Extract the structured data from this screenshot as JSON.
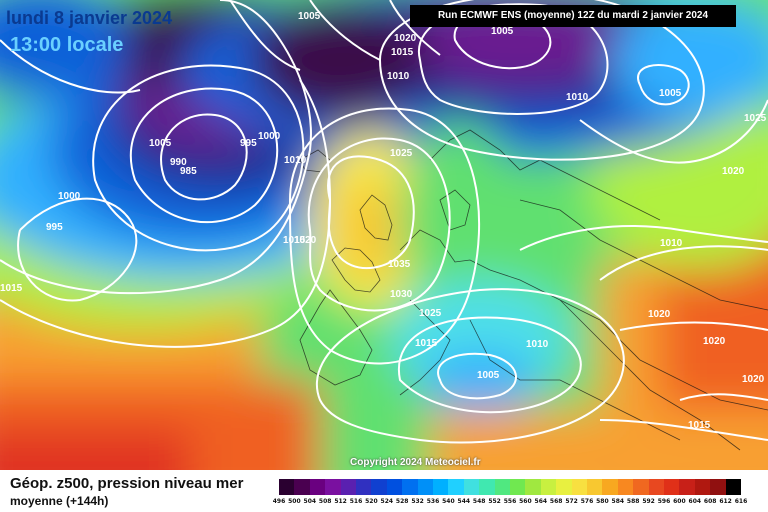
{
  "map": {
    "date_text": "lundi 8 janvier 2024",
    "hour_text": "13:00 locale",
    "run_text": "Run ECMWF ENS (moyenne) 12Z du mardi 2 janvier 2024",
    "copyright": "Copyright 2024 Meteociel.fr",
    "isobar_labels": [
      "1005",
      "1020",
      "1015",
      "1010",
      "1005",
      "1010",
      "1005",
      "1025",
      "1005",
      "1000",
      "995",
      "990",
      "985",
      "1000",
      "995",
      "1025",
      "1020",
      "1010",
      "1015",
      "1035",
      "1030",
      "1025",
      "1015",
      "1010",
      "1005",
      "1010",
      "1020",
      "1020",
      "1020",
      "1015",
      "1015",
      "1020"
    ]
  },
  "legend": {
    "title": "Géop. z500, pression niveau mer",
    "subtitle": "moyenne   (+144h)",
    "scale_values": [
      "496",
      "500",
      "504",
      "508",
      "512",
      "516",
      "520",
      "524",
      "528",
      "532",
      "536",
      "540",
      "544",
      "548",
      "552",
      "556",
      "560",
      "564",
      "568",
      "572",
      "576",
      "580",
      "584",
      "588",
      "592",
      "596",
      "600",
      "604",
      "608",
      "612",
      "616"
    ],
    "scale_colors": [
      "#2a0030",
      "#4a0050",
      "#6a0080",
      "#7a10a0",
      "#5a20b0",
      "#3030c0",
      "#1040d0",
      "#0050e0",
      "#0070f0",
      "#0090f8",
      "#00b0ff",
      "#20d0ff",
      "#40e0e0",
      "#40e8b0",
      "#50e880",
      "#70e850",
      "#a0e840",
      "#c8f040",
      "#e8f040",
      "#f8e040",
      "#f8c830",
      "#f8a820",
      "#f88820",
      "#f06820",
      "#e84820",
      "#e03018",
      "#c82018",
      "#b01810",
      "#901010",
      "#000000"
    ],
    "map_colors": {
      "deep_purple": "#3a0a4a",
      "purple": "#6a1a90",
      "dark_blue": "#1a2a8a",
      "blue": "#1060d8",
      "light_blue": "#30b0ff",
      "cyan": "#50e0e8",
      "green": "#60e070",
      "yellow_green": "#b0f040",
      "yellow": "#f8f050",
      "orange": "#f8a030",
      "red_orange": "#f06020",
      "red": "#e03020"
    }
  }
}
